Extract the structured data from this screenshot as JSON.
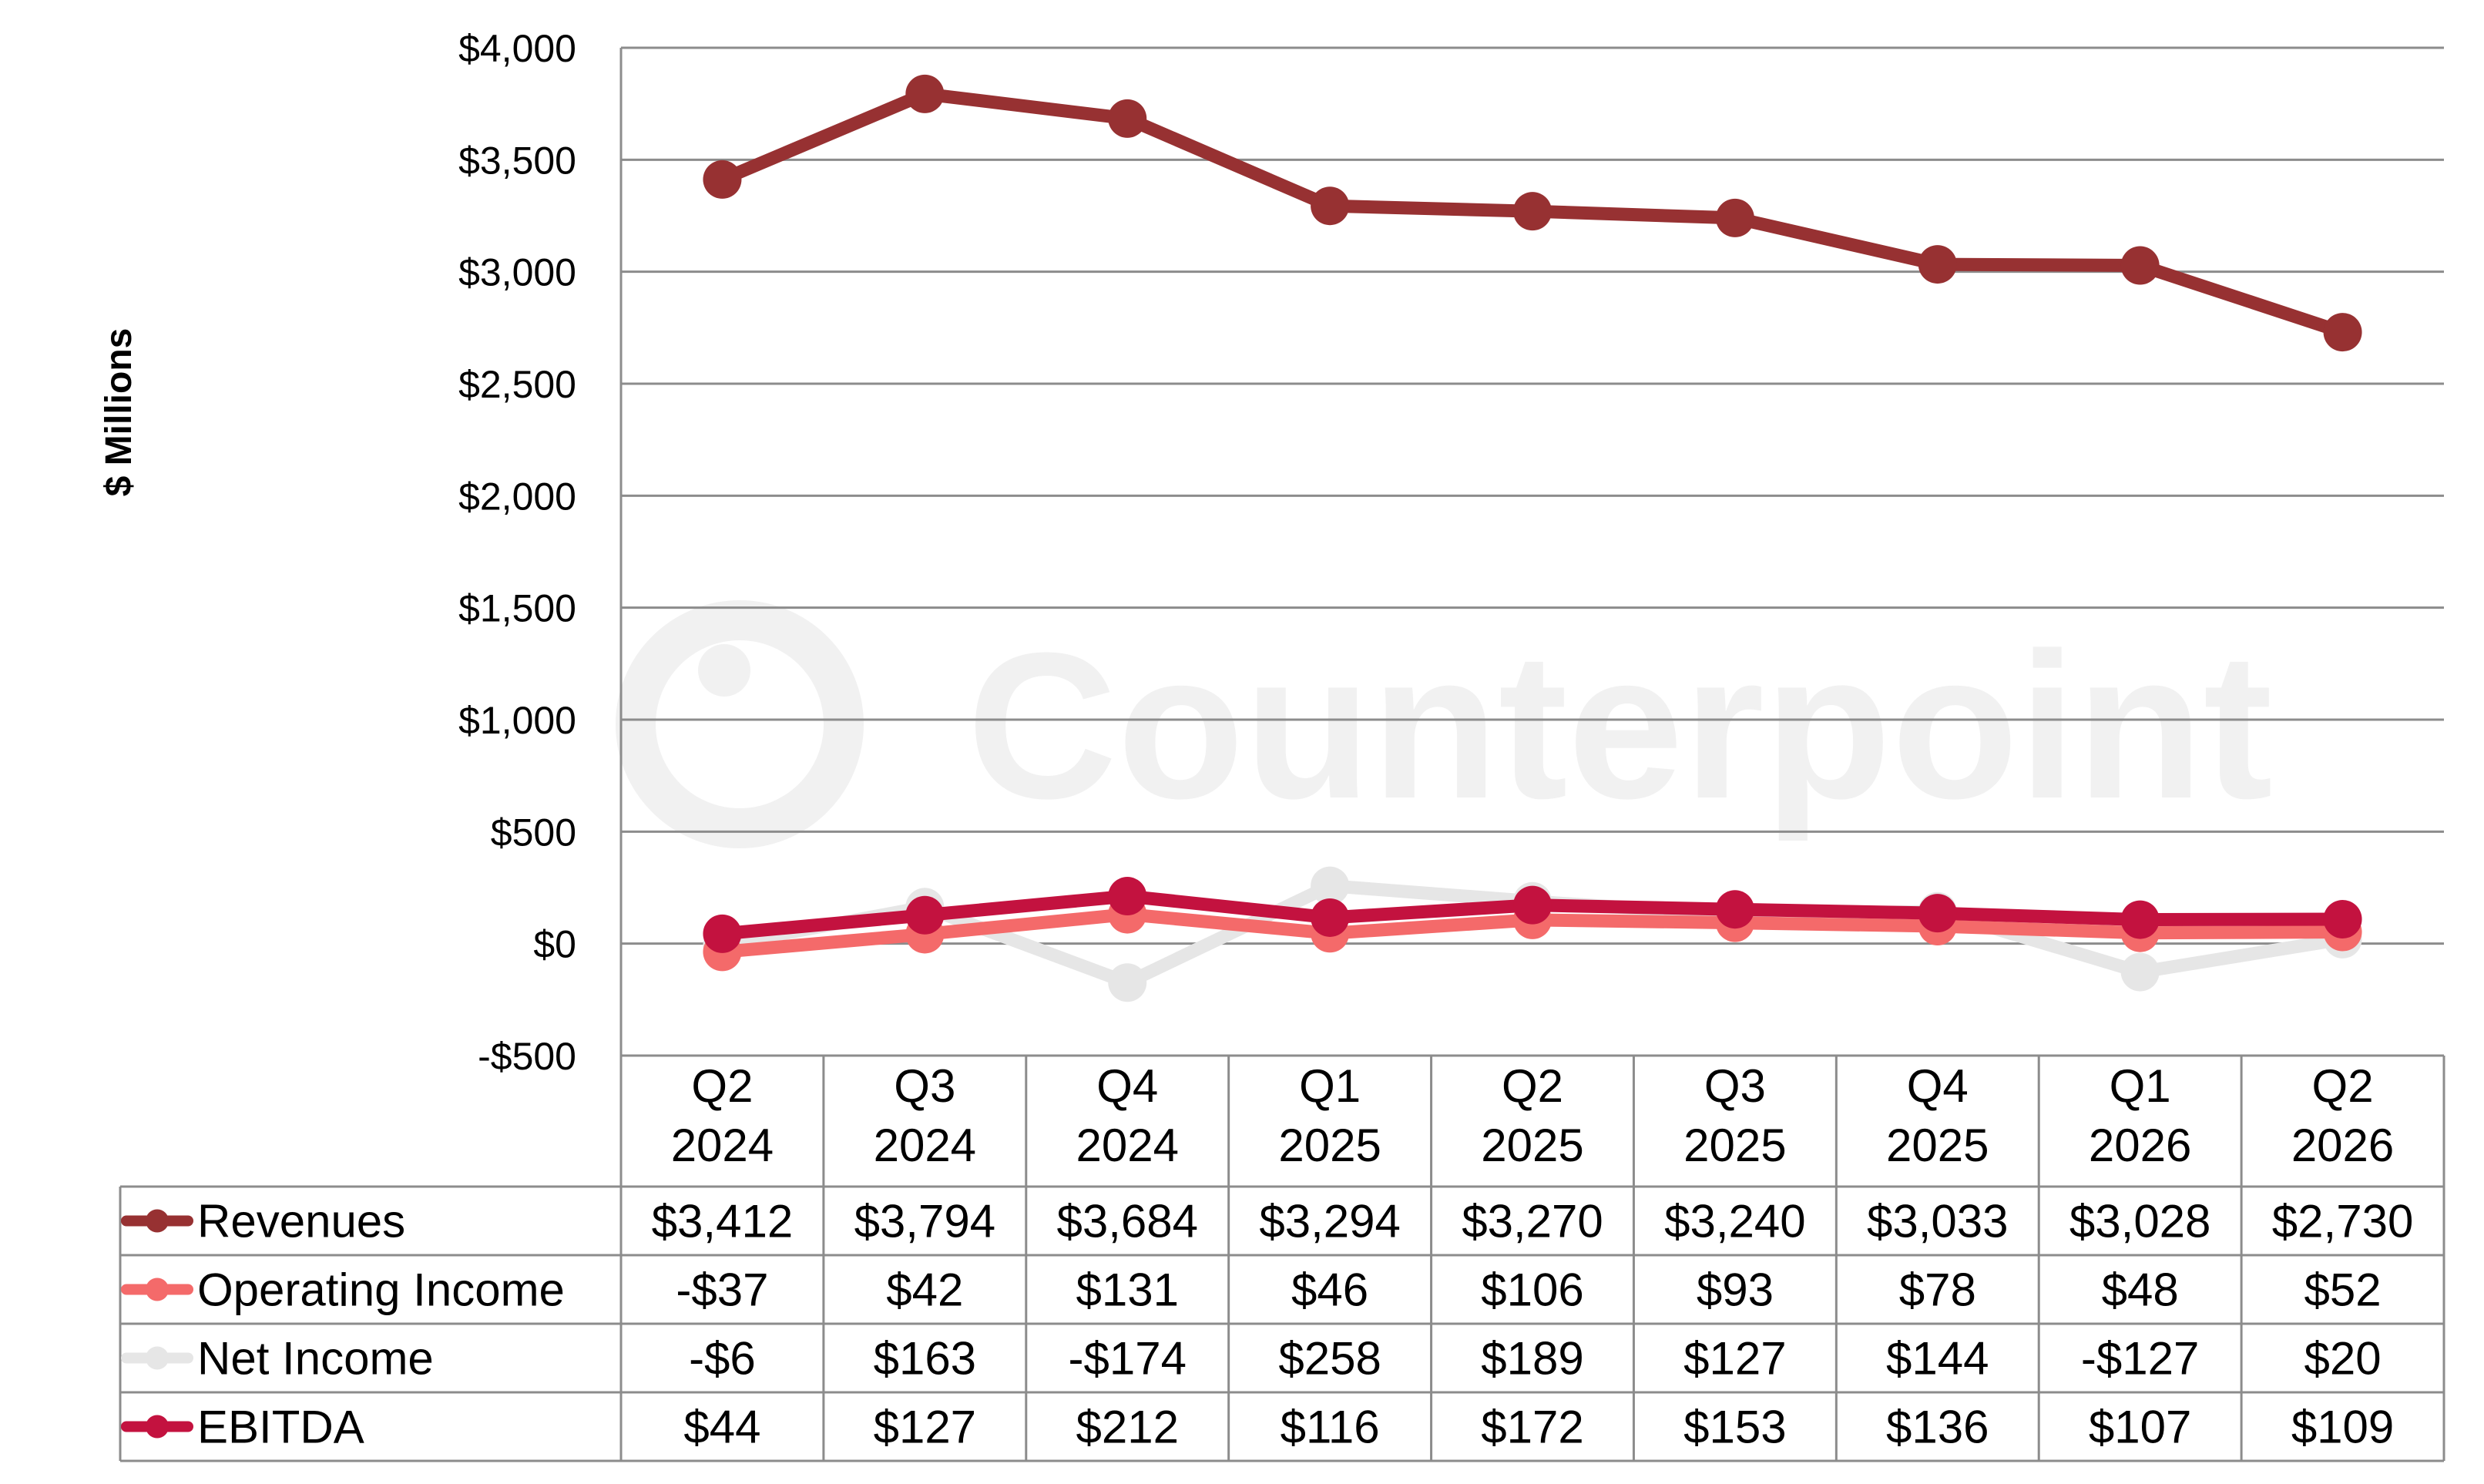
{
  "chart_data": {
    "type": "line",
    "watermark": "Counterpoint",
    "ylabel": "$ Millions",
    "ylim": [
      -500,
      4000
    ],
    "yticks": [
      -500,
      0,
      500,
      1000,
      1500,
      2000,
      2500,
      3000,
      3500,
      4000
    ],
    "ytick_labels": [
      "-$500",
      "$0",
      "$500",
      "$1,000",
      "$1,500",
      "$2,000",
      "$2,500",
      "$3,000",
      "$3,500",
      "$4,000"
    ],
    "grid": true,
    "legend": "data-table",
    "categories": [
      {
        "q": "Q2",
        "year": "2024"
      },
      {
        "q": "Q3",
        "year": "2024"
      },
      {
        "q": "Q4",
        "year": "2024"
      },
      {
        "q": "Q1",
        "year": "2025"
      },
      {
        "q": "Q2",
        "year": "2025"
      },
      {
        "q": "Q3",
        "year": "2025"
      },
      {
        "q": "Q4",
        "year": "2025"
      },
      {
        "q": "Q1",
        "year": "2026"
      },
      {
        "q": "Q2",
        "year": "2026"
      }
    ],
    "series": [
      {
        "name": "Revenues",
        "color": "#973132",
        "values": [
          3412,
          3794,
          3684,
          3294,
          3270,
          3240,
          3033,
          3028,
          2730
        ],
        "labels": [
          "$3,412",
          "$3,794",
          "$3,684",
          "$3,294",
          "$3,270",
          "$3,240",
          "$3,033",
          "$3,028",
          "$2,730"
        ]
      },
      {
        "name": "Operating Income",
        "color": "#f46a6a",
        "values": [
          -37,
          42,
          131,
          46,
          106,
          93,
          78,
          48,
          52
        ],
        "labels": [
          "-$37",
          "$42",
          "$131",
          "$46",
          "$106",
          "$93",
          "$78",
          "$48",
          "$52"
        ]
      },
      {
        "name": "Net Income",
        "color": "#e6e6e6",
        "values": [
          -6,
          163,
          -174,
          258,
          189,
          127,
          144,
          -127,
          20
        ],
        "labels": [
          "-$6",
          "$163",
          "-$174",
          "$258",
          "$189",
          "$127",
          "$144",
          "-$127",
          "$20"
        ]
      },
      {
        "name": "EBITDA",
        "color": "#c3123f",
        "values": [
          44,
          127,
          212,
          116,
          172,
          153,
          136,
          107,
          109
        ],
        "labels": [
          "$44",
          "$127",
          "$212",
          "$116",
          "$172",
          "$153",
          "$136",
          "$107",
          "$109"
        ]
      }
    ]
  }
}
